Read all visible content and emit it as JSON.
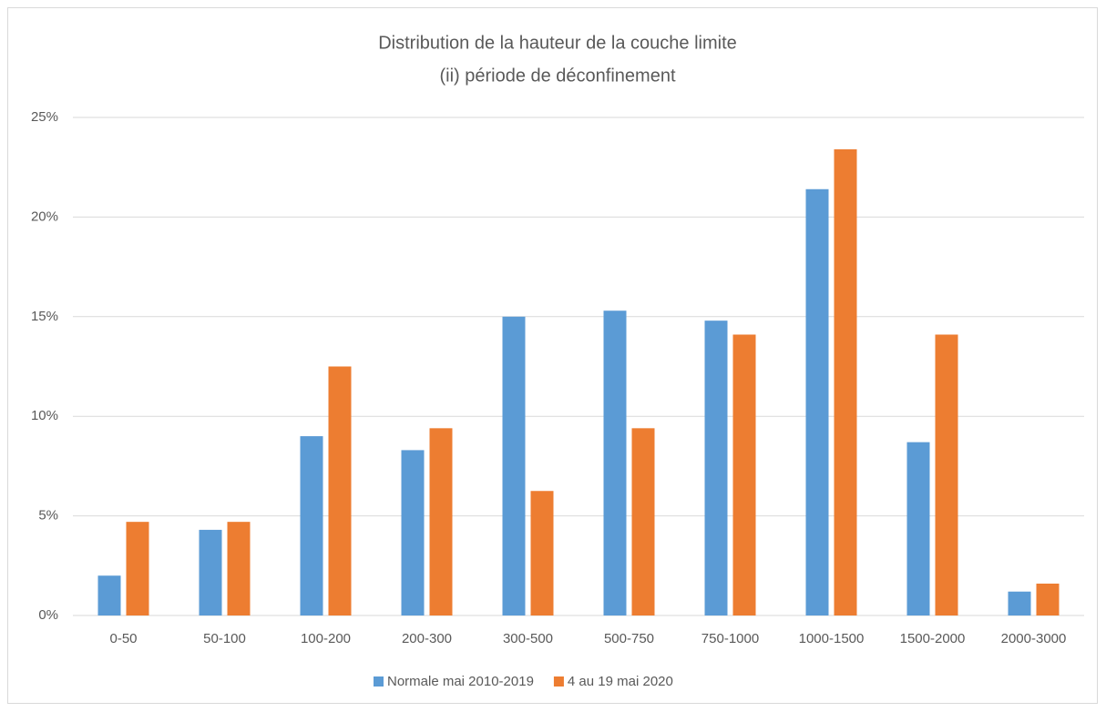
{
  "chart_data": {
    "type": "bar",
    "title": [
      "Distribution de la hauteur de la couche limite",
      "(ii) période de déconfinement"
    ],
    "categories": [
      "0-50",
      "50-100",
      "100-200",
      "200-300",
      "300-500",
      "500-750",
      "750-1000",
      "1000-1500",
      "1500-2000",
      "2000-3000"
    ],
    "series": [
      {
        "name": "Normale mai 2010-2019",
        "color": "#5b9bd5",
        "values": [
          2.0,
          4.3,
          9.0,
          8.3,
          15.0,
          15.3,
          14.8,
          21.4,
          8.7,
          1.2
        ]
      },
      {
        "name": "4 au 19 mai 2020",
        "color": "#ed7d31",
        "values": [
          4.7,
          4.7,
          12.5,
          9.4,
          6.25,
          9.4,
          14.1,
          23.4,
          14.1,
          1.6
        ]
      }
    ],
    "ylim": [
      0,
      25
    ],
    "yticks": [
      {
        "value": 0,
        "label": "0%"
      },
      {
        "value": 5,
        "label": "5%"
      },
      {
        "value": 10,
        "label": "10%"
      },
      {
        "value": 15,
        "label": "15%"
      },
      {
        "value": 20,
        "label": "20%"
      },
      {
        "value": 25,
        "label": "25%"
      }
    ],
    "grid": true,
    "legend": "bottom"
  }
}
